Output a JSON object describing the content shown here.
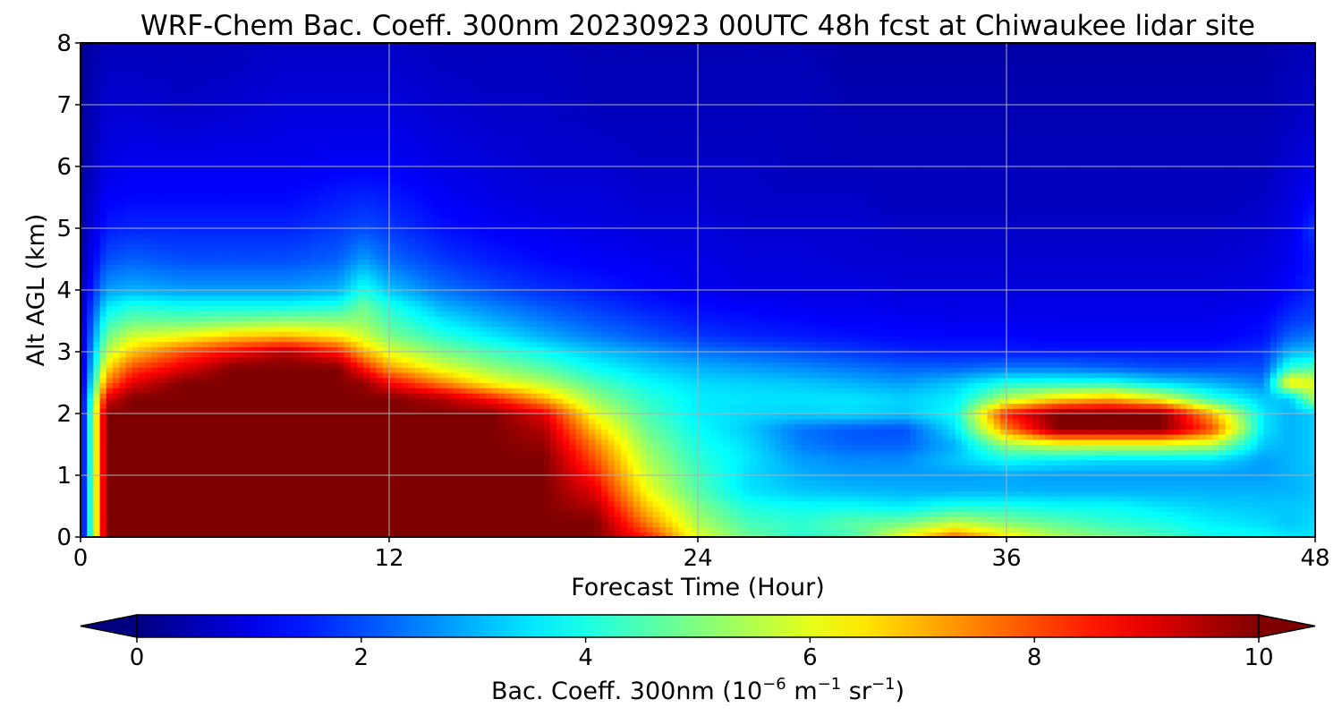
{
  "chart_data": {
    "type": "heatmap",
    "title": "WRF-Chem Bac. Coeff. 300nm  20230923 00UTC 48h fcst at Chiwaukee lidar site",
    "xlabel": "Forecast Time (Hour)",
    "ylabel": "Alt AGL (km)",
    "xlim": [
      0,
      48
    ],
    "ylim": [
      0,
      8
    ],
    "x_ticks": [
      "0",
      "12",
      "24",
      "36",
      "48"
    ],
    "y_ticks": [
      "0",
      "1",
      "2",
      "3",
      "4",
      "5",
      "6",
      "7",
      "8"
    ],
    "grid": true,
    "colormap": "jet",
    "color_range": [
      0,
      10
    ],
    "colorbar": {
      "orientation": "horizontal",
      "extend": "both",
      "ticks": [
        "0",
        "2",
        "4",
        "6",
        "8",
        "10"
      ],
      "label": "Bac. Coeff. 300nm  (10",
      "label_exp1": "−6",
      "label_mid1": " m",
      "label_exp2": "−1",
      "label_mid2": " sr",
      "label_exp3": "−1",
      "label_end": ")"
    },
    "x": [
      0,
      1,
      2,
      4,
      6,
      8,
      10,
      11,
      12,
      14,
      16,
      18,
      20,
      22,
      24,
      26,
      28,
      30,
      32,
      34,
      36,
      38,
      40,
      42,
      44,
      46,
      47,
      48
    ],
    "y": [
      0,
      0.25,
      0.5,
      0.75,
      1,
      1.25,
      1.5,
      1.75,
      2,
      2.25,
      2.5,
      2.75,
      3,
      3.25,
      3.5,
      3.75,
      4,
      4.5,
      5,
      5.5,
      6,
      7,
      8
    ],
    "z": [
      [
        0.5,
        10,
        10,
        10,
        10,
        10,
        10,
        10,
        10,
        10,
        10,
        10,
        10,
        8.5,
        6,
        4.8,
        4.2,
        4.5,
        6.2,
        7.8,
        6.5,
        5.5,
        5,
        4.5,
        4,
        3.8,
        3.5,
        3.5
      ],
      [
        0.5,
        10,
        10,
        10,
        10,
        10,
        10,
        10,
        10,
        10,
        10,
        10,
        10,
        7.5,
        5.4,
        4.4,
        4.2,
        4.6,
        4.8,
        5.5,
        5,
        4.6,
        4.2,
        4,
        3.6,
        3.4,
        3.2,
        3.4
      ],
      [
        0.5,
        10,
        10,
        10,
        10,
        10,
        10,
        10,
        10,
        10,
        10,
        10,
        9.5,
        6.8,
        5,
        4,
        3.8,
        3.8,
        3.6,
        4,
        4,
        3.8,
        3.8,
        3.5,
        3.3,
        3.2,
        3.2,
        3.3
      ],
      [
        0.5,
        10,
        10,
        10,
        10,
        10,
        10,
        10,
        10,
        10,
        10,
        10,
        9,
        6.2,
        4.6,
        3.5,
        3.2,
        3.1,
        3,
        3,
        3,
        3,
        3,
        3,
        3,
        3,
        3,
        3.2
      ],
      [
        0.5,
        10,
        10,
        10,
        10,
        10,
        10,
        10,
        10,
        10,
        10,
        10,
        8.5,
        5.8,
        4.4,
        3.4,
        3,
        2.8,
        2.8,
        2.8,
        2.9,
        2.8,
        2.8,
        2.8,
        2.8,
        2.8,
        3,
        3.2
      ],
      [
        0.5,
        10,
        10,
        10,
        10,
        10,
        10,
        10,
        10,
        10,
        10,
        10,
        8,
        5.5,
        4.2,
        3.5,
        2.8,
        2.6,
        2.6,
        3.2,
        3.8,
        3.6,
        3.4,
        3.4,
        3.4,
        2.8,
        3,
        3.3
      ],
      [
        0.5,
        10,
        10,
        10,
        10,
        10,
        10,
        10,
        10,
        10,
        10,
        9.8,
        7.5,
        5.2,
        4,
        3.4,
        2.5,
        2.2,
        2.2,
        3,
        5.2,
        5.8,
        5.8,
        5.8,
        5.5,
        3.2,
        3,
        3.3
      ],
      [
        0.5,
        10,
        10,
        10,
        10,
        10,
        10,
        10,
        10,
        10,
        10,
        9.5,
        6.8,
        4.8,
        3.8,
        3.2,
        2.4,
        2.1,
        2,
        3.5,
        7.5,
        10,
        10,
        10,
        8,
        3.5,
        3,
        3.3
      ],
      [
        0.5,
        10,
        10,
        10,
        10,
        10,
        10,
        10,
        10,
        10,
        10,
        9,
        6,
        4.5,
        3.6,
        3.4,
        3.3,
        3.4,
        3.2,
        3.8,
        8.5,
        10,
        10,
        10,
        7,
        3.5,
        3,
        3.3
      ],
      [
        0.5,
        9,
        10,
        10,
        10,
        10,
        10,
        10,
        10,
        9.5,
        8.5,
        7,
        5.2,
        4.2,
        3.6,
        3.5,
        3.5,
        3.5,
        3.3,
        3.6,
        5.5,
        6.5,
        7,
        6,
        4.2,
        3.2,
        3.2,
        5.5
      ],
      [
        0.5,
        7.5,
        9,
        10,
        10,
        10,
        10,
        9.8,
        8.8,
        7.5,
        6.2,
        5.5,
        4.5,
        3.8,
        3.4,
        3.3,
        3.2,
        3,
        2.8,
        3.2,
        4,
        4,
        4,
        3.4,
        3,
        2.5,
        6.5,
        6
      ],
      [
        0.5,
        6.5,
        8,
        9,
        10,
        10,
        10,
        8.5,
        7.2,
        6,
        5.2,
        4.6,
        3.8,
        3.3,
        3,
        2.8,
        2.6,
        2.4,
        2.2,
        2.2,
        2.4,
        2.4,
        2.2,
        2,
        2,
        2,
        4.2,
        4.5
      ],
      [
        0.5,
        5.5,
        6.8,
        8,
        8.8,
        9.5,
        8.5,
        7,
        6,
        5,
        4.4,
        3.8,
        3.2,
        2.8,
        2.4,
        2.2,
        2,
        1.8,
        1.6,
        1.5,
        1.5,
        1.5,
        1.5,
        1.5,
        1.5,
        1.7,
        3,
        3.2
      ],
      [
        0.5,
        4.8,
        5.8,
        6.2,
        6.8,
        7,
        6.5,
        5.8,
        5,
        4.2,
        3.6,
        3,
        2.5,
        2.1,
        1.8,
        1.6,
        1.5,
        1.4,
        1.3,
        1.3,
        1.3,
        1.2,
        1.2,
        1.2,
        1.2,
        1.4,
        2.2,
        2.5
      ],
      [
        0.5,
        4.2,
        4.8,
        4.8,
        5,
        5.2,
        5.2,
        5.2,
        4.5,
        3.6,
        3,
        2.5,
        2.1,
        1.8,
        1.5,
        1.4,
        1.3,
        1.2,
        1.2,
        1.1,
        1.1,
        1.1,
        1.1,
        1.1,
        1.1,
        1.3,
        1.8,
        2
      ],
      [
        0.5,
        3.5,
        4,
        3.8,
        3.8,
        3.8,
        4,
        4.8,
        4,
        3,
        2.5,
        2.1,
        1.8,
        1.5,
        1.3,
        1.2,
        1.1,
        1.1,
        1,
        1,
        1,
        1,
        1,
        1,
        1,
        1.1,
        1.5,
        1.8
      ],
      [
        0.5,
        2.8,
        3,
        2.8,
        2.8,
        2.8,
        3,
        4,
        3.2,
        2.4,
        2,
        1.7,
        1.5,
        1.3,
        1.1,
        1,
        1,
        1,
        0.9,
        0.9,
        0.9,
        0.9,
        0.9,
        0.9,
        0.9,
        1,
        1.3,
        1.6
      ],
      [
        0.4,
        2,
        2.2,
        2,
        2,
        2,
        2.2,
        2.8,
        2.3,
        1.8,
        1.5,
        1.3,
        1.2,
        1.1,
        1,
        0.9,
        0.9,
        0.8,
        0.8,
        0.8,
        0.8,
        0.8,
        0.8,
        0.8,
        0.8,
        0.9,
        1.1,
        1.5
      ],
      [
        0.4,
        1.5,
        1.6,
        1.6,
        1.6,
        1.6,
        1.8,
        2,
        1.8,
        1.4,
        1.2,
        1.1,
        1,
        0.9,
        0.9,
        0.8,
        0.8,
        0.8,
        0.7,
        0.7,
        0.7,
        0.7,
        0.7,
        0.7,
        0.7,
        0.8,
        1,
        1.8
      ],
      [
        0.4,
        1.2,
        1.3,
        1.3,
        1.3,
        1.3,
        1.5,
        1.6,
        1.5,
        1.2,
        1,
        0.9,
        0.9,
        0.8,
        0.8,
        0.7,
        0.7,
        0.7,
        0.6,
        0.6,
        0.6,
        0.6,
        0.6,
        0.6,
        0.6,
        0.7,
        0.9,
        1.3
      ],
      [
        0.3,
        1,
        1.1,
        1.1,
        1.1,
        1.1,
        1.2,
        1.2,
        1.2,
        1,
        0.9,
        0.8,
        0.8,
        0.7,
        0.7,
        0.7,
        0.6,
        0.6,
        0.6,
        0.6,
        0.6,
        0.6,
        0.6,
        0.6,
        0.6,
        0.6,
        0.8,
        1
      ],
      [
        0.3,
        0.8,
        0.8,
        0.7,
        0.8,
        0.9,
        0.9,
        0.9,
        0.9,
        0.8,
        0.7,
        0.7,
        0.6,
        0.6,
        0.6,
        0.6,
        0.6,
        0.5,
        0.5,
        0.5,
        0.5,
        0.5,
        0.5,
        0.5,
        0.5,
        0.5,
        0.6,
        0.7
      ],
      [
        0.2,
        0.6,
        0.6,
        0.6,
        0.6,
        0.7,
        0.7,
        0.7,
        0.7,
        0.6,
        0.6,
        0.6,
        0.5,
        0.5,
        0.5,
        0.5,
        0.5,
        0.4,
        0.4,
        0.4,
        0.4,
        0.4,
        0.4,
        0.4,
        0.4,
        0.4,
        0.5,
        0.6
      ]
    ]
  }
}
